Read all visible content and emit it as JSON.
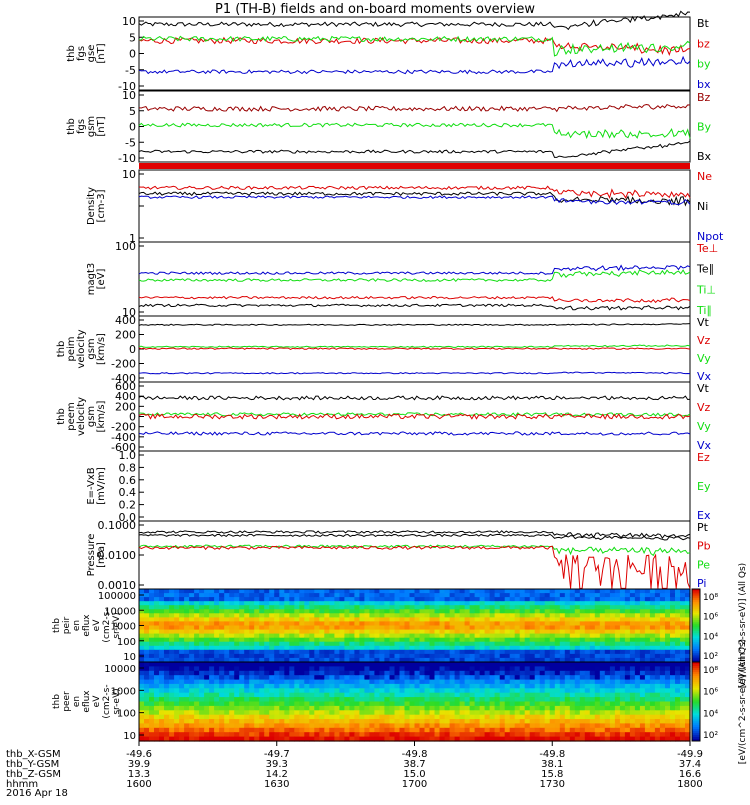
{
  "title": "P1 (TH-B) fields and on-board moments overview",
  "colors": {
    "black": "#000000",
    "red": "#dd0000",
    "green": "#11dd11",
    "blue": "#0000cc",
    "darkred": "#990000"
  },
  "chart_data": {
    "type": "line",
    "title": "P1 (TH-B) fields and on-board moments overview",
    "x_axis": {
      "ticks": [
        "1600",
        "1630",
        "1700",
        "1730",
        "1800"
      ],
      "rows": [
        {
          "label": "thb_X-GSM",
          "values": [
            "-49.6",
            "-49.7",
            "-49.8",
            "-49.8",
            "-49.9"
          ]
        },
        {
          "label": "thb_Y-GSM",
          "values": [
            "39.9",
            "39.3",
            "38.7",
            "38.1",
            "37.4"
          ]
        },
        {
          "label": "thb_Z-GSM",
          "values": [
            "13.3",
            "14.2",
            "15.0",
            "15.8",
            "16.6"
          ]
        },
        {
          "label": "hhmm",
          "values": [
            "1600",
            "1630",
            "1700",
            "1730",
            "1800"
          ]
        }
      ],
      "date": "2016 Apr 18"
    },
    "panels": [
      {
        "id": "fgs_gse",
        "ylabel_lines": [
          "thb",
          "fgs",
          "gse",
          "[nT]"
        ],
        "yticks": [
          "10",
          "5",
          "0",
          "-5",
          "-10"
        ],
        "ylim": [
          -10,
          10
        ],
        "legend": [
          {
            "label": "Bt",
            "color": "#000000"
          },
          {
            "label": "bz",
            "color": "#dd0000"
          },
          {
            "label": "by",
            "color": "#11dd11"
          },
          {
            "label": "bx",
            "color": "#0000cc"
          }
        ],
        "series": [
          {
            "color": "#000000",
            "base": 8,
            "noise": 0.6,
            "late": [
              -1,
              3
            ]
          },
          {
            "color": "#dd0000",
            "base": 3.5,
            "noise": 0.8,
            "late": [
              -1,
              -3
            ]
          },
          {
            "color": "#11dd11",
            "base": 4,
            "noise": 0.7,
            "late": [
              -3,
              -2
            ]
          },
          {
            "color": "#0000cc",
            "base": -5,
            "noise": 0.5,
            "late": [
              2,
              3
            ]
          }
        ]
      },
      {
        "id": "fgs_gsm",
        "ylabel_lines": [
          "thb",
          "fgs",
          "gsm",
          "[nT]"
        ],
        "yticks": [
          "10",
          "5",
          "0",
          "-5",
          "-10"
        ],
        "ylim": [
          -12,
          12
        ],
        "legend": [
          {
            "label": "Bz",
            "color": "#990000"
          },
          {
            "label": "By",
            "color": "#11dd11"
          },
          {
            "label": "Bx",
            "color": "#000000"
          }
        ],
        "series": [
          {
            "color": "#990000",
            "base": 6,
            "noise": 0.8,
            "late": [
              0,
              1
            ]
          },
          {
            "color": "#11dd11",
            "base": 0.5,
            "noise": 0.6,
            "late": [
              -3,
              -3
            ]
          },
          {
            "color": "#000000",
            "base": -8.5,
            "noise": 0.5,
            "late": [
              -2,
              3
            ]
          }
        ]
      },
      {
        "id": "density",
        "ylabel_lines": [
          "Density",
          "[cm-3]"
        ],
        "yticks": [
          "10",
          "",
          "1"
        ],
        "log": true,
        "ylim": [
          1,
          12
        ],
        "legend": [
          {
            "label": "Ne",
            "color": "#dd0000"
          },
          {
            "label": "Ni",
            "color": "#000000"
          },
          {
            "label": "Npot",
            "color": "#0000cc"
          }
        ],
        "series": [
          {
            "color": "#dd0000",
            "base": 6.5,
            "noise": 0.35,
            "late": [
              -1,
              -1.5
            ]
          },
          {
            "color": "#000000",
            "base": 5.3,
            "noise": 0.3,
            "late": [
              -1,
              -1.2
            ]
          },
          {
            "color": "#0000cc",
            "base": 4.7,
            "noise": 0.2,
            "late": [
              -0.6,
              -0.8
            ]
          }
        ]
      },
      {
        "id": "temperature",
        "ylabel_lines": [
          "magt3",
          "[eV]"
        ],
        "yticks": [
          "100",
          "10"
        ],
        "log": true,
        "ylim": [
          10,
          400
        ],
        "legend": [
          {
            "label": "Te⊥",
            "color": "#dd0000"
          },
          {
            "label": "Te∥",
            "color": "#000000"
          },
          {
            "label": "Ti⊥",
            "color": "#11dd11"
          },
          {
            "label": "Ti∥",
            "color": "#11dd11"
          }
        ],
        "series": [
          {
            "color": "#0000cc",
            "base": 85,
            "noise": 5,
            "late": [
              20,
              30
            ]
          },
          {
            "color": "#11dd11",
            "base": 60,
            "noise": 4,
            "late": [
              20,
              30
            ]
          },
          {
            "color": "#dd0000",
            "base": 25,
            "noise": 1.5,
            "late": [
              -3,
              -3
            ]
          },
          {
            "color": "#000000",
            "base": 17,
            "noise": 1,
            "late": [
              -2,
              -2
            ]
          }
        ]
      },
      {
        "id": "peim_velocity",
        "ylabel_lines": [
          "thb",
          "peim",
          "velocity",
          "gsm",
          "[km/s]"
        ],
        "yticks": [
          "400",
          "200",
          "0",
          "-200",
          "-400"
        ],
        "ylim": [
          -450,
          450
        ],
        "legend": [
          {
            "label": "Vt",
            "color": "#000000"
          },
          {
            "label": "Vz",
            "color": "#dd0000"
          },
          {
            "label": "Vy",
            "color": "#11dd11"
          },
          {
            "label": "Vx",
            "color": "#0000cc"
          }
        ],
        "series": [
          {
            "color": "#000000",
            "base": 330,
            "noise": 8,
            "late": [
              0,
              10
            ]
          },
          {
            "color": "#11dd11",
            "base": 30,
            "noise": 8,
            "late": [
              10,
              15
            ]
          },
          {
            "color": "#dd0000",
            "base": 5,
            "noise": 10,
            "late": [
              0,
              0
            ]
          },
          {
            "color": "#0000cc",
            "base": -330,
            "noise": 8,
            "late": [
              10,
              0
            ]
          }
        ]
      },
      {
        "id": "peem_velocity",
        "ylabel_lines": [
          "thb",
          "peem",
          "velocity",
          "gsm",
          "[km/s]"
        ],
        "yticks": [
          "600",
          "400",
          "200",
          "0",
          "-200",
          "-400",
          "-600"
        ],
        "ylim": [
          -650,
          650
        ],
        "legend": [
          {
            "label": "Vt",
            "color": "#000000"
          },
          {
            "label": "Vz",
            "color": "#dd0000"
          },
          {
            "label": "Vy",
            "color": "#11dd11"
          },
          {
            "label": "Vx",
            "color": "#0000cc"
          }
        ],
        "series": [
          {
            "color": "#000000",
            "base": 350,
            "noise": 35,
            "late": [
              0,
              0
            ]
          },
          {
            "color": "#11dd11",
            "base": 40,
            "noise": 30,
            "late": [
              0,
              0
            ]
          },
          {
            "color": "#dd0000",
            "base": 0,
            "noise": 45,
            "late": [
              0,
              0
            ]
          },
          {
            "color": "#0000cc",
            "base": -320,
            "noise": 30,
            "late": [
              0,
              0
            ]
          }
        ]
      },
      {
        "id": "e_field",
        "ylabel_lines": [
          "E=-VxB",
          "[mV/m]"
        ],
        "yticks": [
          "1.0",
          "0.8",
          "0.6",
          "0.4",
          "0.2",
          "0.0"
        ],
        "ylim": [
          0,
          1
        ],
        "legend": [
          {
            "label": "Ez",
            "color": "#dd0000"
          },
          {
            "label": "Ey",
            "color": "#11dd11"
          },
          {
            "label": "Ex",
            "color": "#0000cc"
          }
        ],
        "series": []
      },
      {
        "id": "pressure",
        "ylabel_lines": [
          "Pressure",
          "[nPa]"
        ],
        "yticks": [
          "0.1000",
          "0.0100",
          "0.0010"
        ],
        "log": true,
        "ylim": [
          0.0005,
          0.15
        ],
        "legend": [
          {
            "label": "Pt",
            "color": "#000000"
          },
          {
            "label": "Pb",
            "color": "#dd0000"
          },
          {
            "label": "Pe",
            "color": "#11dd11"
          },
          {
            "label": "Pi",
            "color": "#0000cc"
          }
        ],
        "series": [
          {
            "color": "#000000",
            "base": 0.06,
            "noise": 0.006,
            "late": [
              -0.01,
              -0.015
            ]
          },
          {
            "color": "#000000",
            "base": 0.045,
            "noise": 0.004,
            "late": [
              -0.005,
              -0.01
            ]
          },
          {
            "color": "#11dd11",
            "base": 0.018,
            "noise": 0.002,
            "late": [
              -0.005,
              -0.006
            ]
          },
          {
            "color": "#dd0000",
            "base": 0.016,
            "noise": 0.002,
            "late": [
              -0.012,
              -0.013
            ]
          }
        ]
      }
    ],
    "spectrograms": [
      {
        "id": "peir_eflux",
        "ylabel_lines": [
          "thb",
          "peir",
          "en",
          "eflux",
          "eV",
          "(cm2-s-",
          "sr-eV)"
        ],
        "yticks": [
          "100000",
          "10000",
          "1000",
          "100",
          "10"
        ],
        "colorbar_ticks": [
          "10⁸",
          "10⁶",
          "10⁴",
          "10²"
        ],
        "colorbar_label": "[eV/(cm^2-s-sr-eV)] (All Qs)"
      },
      {
        "id": "peer_eflux",
        "ylabel_lines": [
          "thb",
          "peer",
          "en",
          "eflux",
          "eV",
          "(cm2-s-",
          "sr-eV)"
        ],
        "yticks": [
          "10000",
          "1000",
          "100",
          "10"
        ],
        "colorbar_ticks": [
          "10⁸",
          "10⁶",
          "10⁴",
          "10²"
        ],
        "colorbar_label": "[eV/(cm^2-s-sr-eV)] (All Qs)"
      }
    ]
  }
}
